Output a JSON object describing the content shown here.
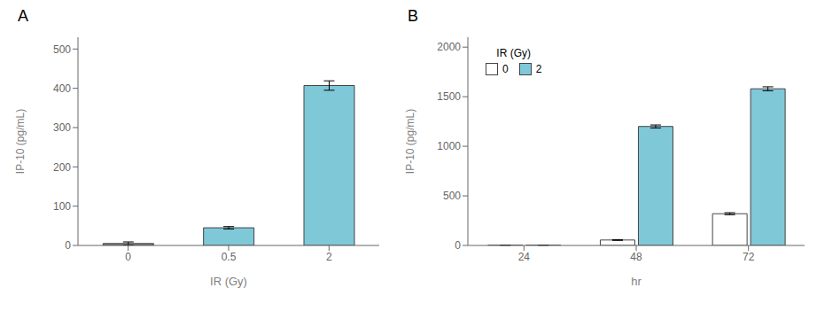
{
  "chart_data": [
    {
      "type": "bar",
      "title": "A",
      "categories": [
        "0",
        "0.5",
        "2"
      ],
      "values": [
        5,
        45,
        407
      ],
      "errors": [
        4,
        3,
        12
      ],
      "colors": [
        "#888888",
        "#7ec8d8",
        "#7ec8d8"
      ],
      "xlabel": "IR (Gy)",
      "ylabel": "IP-10 (pg/mL)",
      "ylim": [
        0,
        530
      ],
      "yticks": [
        0,
        100,
        200,
        300,
        400,
        500
      ]
    },
    {
      "type": "bar",
      "title": "B",
      "categories": [
        "24",
        "48",
        "72"
      ],
      "series": [
        {
          "name": "0",
          "color": "#ffffff",
          "values": [
            3,
            55,
            320
          ],
          "errors": [
            1,
            4,
            10
          ]
        },
        {
          "name": "2",
          "color": "#7ec8d8",
          "values": [
            3,
            1200,
            1580
          ],
          "errors": [
            1,
            15,
            20
          ]
        }
      ],
      "xlabel": "hr",
      "ylabel": "IP-10 (pg/mL)",
      "ylim": [
        0,
        2100
      ],
      "yticks": [
        0,
        500,
        1000,
        1500,
        2000
      ],
      "legend_title": "IR (Gy)",
      "legend": "upper left"
    }
  ]
}
